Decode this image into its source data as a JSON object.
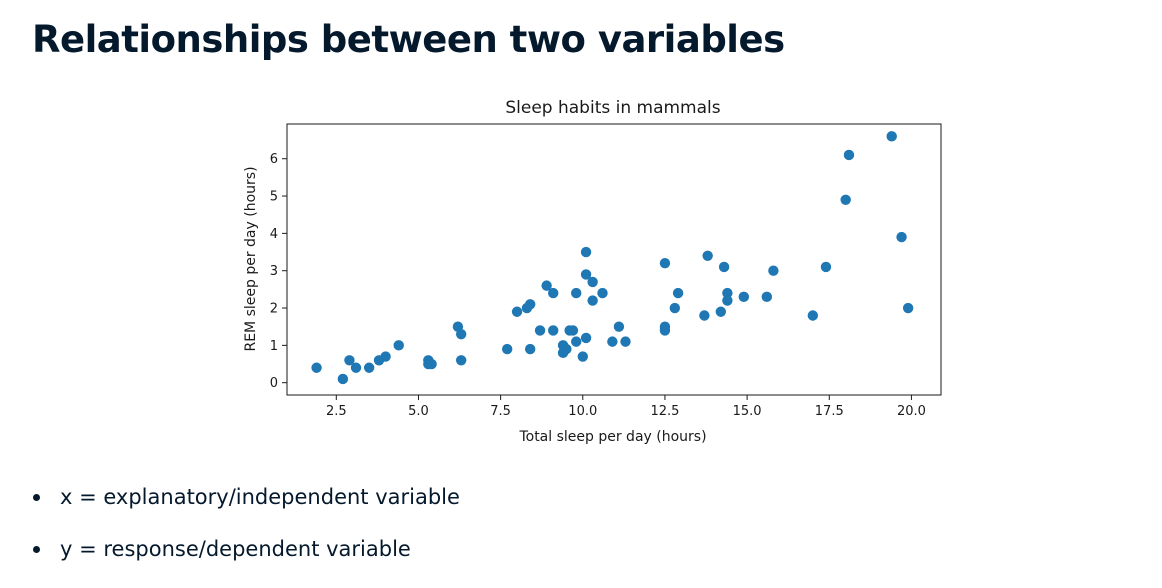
{
  "slide": {
    "title": "Relationships between two variables"
  },
  "bullets": [
    "x = explanatory/independent variable",
    "y = response/dependent variable"
  ],
  "colors": {
    "marker": "#1f77b4",
    "text": "#05192d"
  },
  "chart_data": {
    "type": "scatter",
    "title": "Sleep habits in mammals",
    "xlabel": "Total sleep per day (hours)",
    "ylabel": "REM sleep per day (hours)",
    "xlim": [
      1.0,
      20.9
    ],
    "ylim": [
      -0.33,
      6.93
    ],
    "xticks": [
      2.5,
      5.0,
      7.5,
      10.0,
      12.5,
      15.0,
      17.5,
      20.0
    ],
    "xtick_labels": [
      "2.5",
      "5.0",
      "7.5",
      "10.0",
      "12.5",
      "15.0",
      "17.5",
      "20.0"
    ],
    "yticks": [
      0,
      1,
      2,
      3,
      4,
      5,
      6
    ],
    "ytick_labels": [
      "0",
      "1",
      "2",
      "3",
      "4",
      "5",
      "6"
    ],
    "grid": false,
    "x": [
      1.9,
      2.7,
      2.9,
      3.1,
      3.5,
      3.8,
      4.0,
      4.4,
      5.3,
      5.3,
      5.4,
      6.2,
      6.3,
      6.3,
      7.7,
      8.0,
      8.3,
      8.4,
      8.4,
      8.7,
      8.9,
      9.1,
      9.1,
      9.4,
      9.4,
      9.5,
      9.6,
      9.7,
      9.8,
      9.8,
      10.0,
      10.1,
      10.1,
      10.1,
      10.3,
      10.3,
      10.6,
      10.9,
      11.1,
      11.3,
      12.5,
      12.5,
      12.5,
      12.8,
      12.9,
      13.7,
      13.8,
      14.2,
      14.3,
      14.4,
      14.4,
      14.9,
      15.6,
      15.8,
      17.0,
      17.4,
      18.0,
      18.1,
      19.4,
      19.7,
      19.9
    ],
    "y": [
      0.4,
      0.1,
      0.6,
      0.4,
      0.4,
      0.6,
      0.7,
      1.0,
      0.6,
      0.5,
      0.5,
      1.5,
      1.3,
      0.6,
      0.9,
      1.9,
      2.0,
      2.1,
      0.9,
      1.4,
      2.6,
      2.4,
      1.4,
      1.0,
      0.8,
      0.9,
      1.4,
      1.4,
      1.1,
      2.4,
      0.7,
      3.5,
      2.9,
      1.2,
      2.7,
      2.2,
      2.4,
      1.1,
      1.5,
      1.1,
      3.2,
      1.5,
      1.4,
      2.0,
      2.4,
      1.8,
      3.4,
      1.9,
      3.1,
      2.2,
      2.4,
      2.3,
      2.3,
      3.0,
      1.8,
      3.1,
      4.9,
      6.1,
      6.6,
      3.9,
      2.0
    ]
  }
}
